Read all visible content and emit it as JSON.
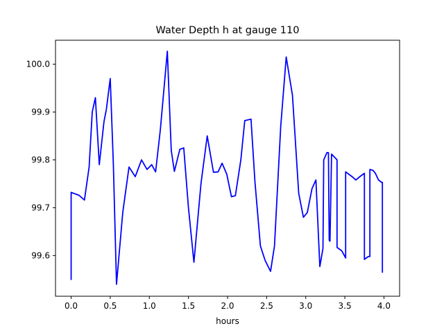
{
  "chart_data": {
    "type": "line",
    "title": "Water Depth h at gauge 110",
    "xlabel": "hours",
    "ylabel": "",
    "xlim": [
      -0.2,
      4.2
    ],
    "ylim": [
      99.515,
      100.05
    ],
    "xticks": [
      0.0,
      0.5,
      1.0,
      1.5,
      2.0,
      2.5,
      3.0,
      3.5,
      4.0
    ],
    "xtick_labels": [
      "0.0",
      "0.5",
      "1.0",
      "1.5",
      "2.0",
      "2.5",
      "3.0",
      "3.5",
      "4.0"
    ],
    "yticks": [
      99.6,
      99.7,
      99.8,
      99.9,
      100.0
    ],
    "ytick_labels": [
      "99.6",
      "99.7",
      "99.8",
      "99.9",
      "100.0"
    ],
    "grid": false,
    "series": [
      {
        "color": "#0000ff",
        "x": [
          0.0,
          0.0,
          0.1,
          0.17,
          0.23,
          0.27,
          0.31,
          0.36,
          0.42,
          0.45,
          0.5,
          0.54,
          0.58,
          0.66,
          0.74,
          0.82,
          0.9,
          0.97,
          1.03,
          1.08,
          1.14,
          1.23,
          1.28,
          1.32,
          1.39,
          1.44,
          1.5,
          1.57,
          1.66,
          1.74,
          1.82,
          1.88,
          1.93,
          1.99,
          2.05,
          2.1,
          2.17,
          2.22,
          2.3,
          2.35,
          2.42,
          2.48,
          2.55,
          2.6,
          2.68,
          2.75,
          2.83,
          2.91,
          2.97,
          3.02,
          3.08,
          3.13,
          3.18,
          3.18,
          3.22,
          3.23,
          3.27,
          3.29,
          3.3,
          3.31,
          3.33,
          3.4,
          3.4,
          3.46,
          3.51,
          3.51,
          3.55,
          3.6,
          3.64,
          3.7,
          3.75,
          3.75,
          3.8,
          3.82,
          3.82,
          3.86,
          3.89,
          3.93,
          3.97,
          3.98,
          3.98
        ],
        "y": [
          99.55,
          99.732,
          99.726,
          99.716,
          99.785,
          99.9,
          99.93,
          99.79,
          99.88,
          99.905,
          99.97,
          99.79,
          99.54,
          99.69,
          99.785,
          99.765,
          99.8,
          99.78,
          99.79,
          99.775,
          99.862,
          100.027,
          99.82,
          99.776,
          99.822,
          99.825,
          99.7,
          99.586,
          99.75,
          99.85,
          99.774,
          99.775,
          99.793,
          99.77,
          99.723,
          99.725,
          99.8,
          99.882,
          99.885,
          99.755,
          99.62,
          99.59,
          99.567,
          99.62,
          99.87,
          100.015,
          99.935,
          99.73,
          99.68,
          99.69,
          99.74,
          99.758,
          99.577,
          99.577,
          99.615,
          99.8,
          99.815,
          99.815,
          99.632,
          99.63,
          99.812,
          99.8,
          99.617,
          99.61,
          99.595,
          99.775,
          99.77,
          99.764,
          99.758,
          99.766,
          99.772,
          99.592,
          99.598,
          99.598,
          99.78,
          99.778,
          99.772,
          99.758,
          99.753,
          99.753,
          99.565
        ]
      }
    ]
  }
}
